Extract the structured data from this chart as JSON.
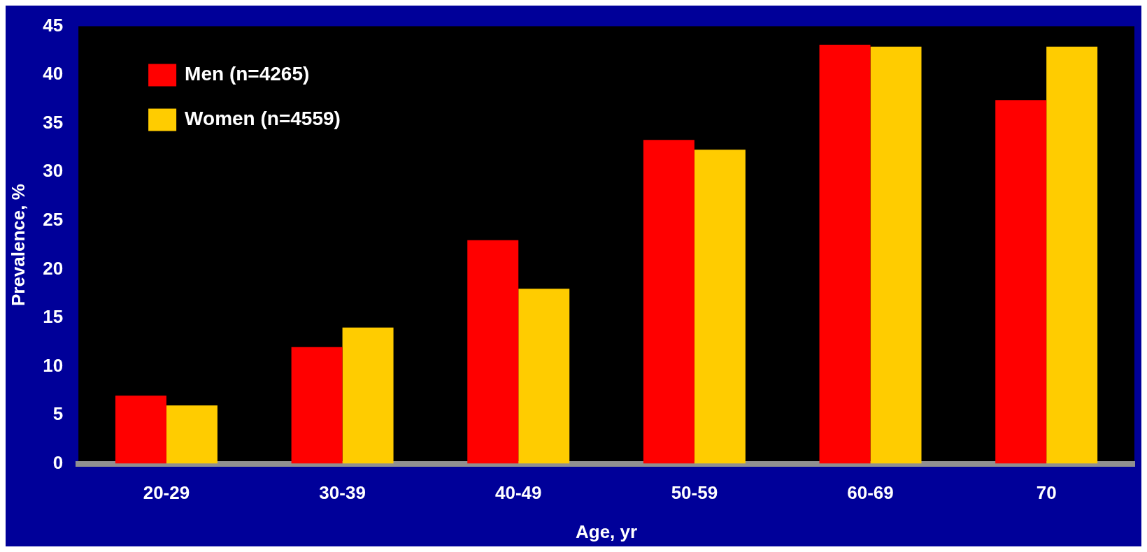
{
  "chart_data": {
    "type": "bar",
    "xlabel": "Age, yr",
    "ylabel": "Prevalence, %",
    "categories": [
      "20-29",
      "30-39",
      "40-49",
      "50-59",
      "60-69",
      "70"
    ],
    "series": [
      {
        "name": "Men (n=4265)",
        "color": "#ff0000",
        "values": [
          7,
          12,
          23,
          33.3,
          43.1,
          37.4
        ]
      },
      {
        "name": "Women (n=4559)",
        "color": "#ffcc00",
        "values": [
          6,
          14,
          18,
          32.3,
          42.9,
          42.9
        ]
      }
    ],
    "ylim": [
      0,
      45
    ],
    "yticks": [
      0,
      5,
      10,
      15,
      20,
      25,
      30,
      35,
      40,
      45
    ],
    "grid": false,
    "legend": "top left"
  }
}
